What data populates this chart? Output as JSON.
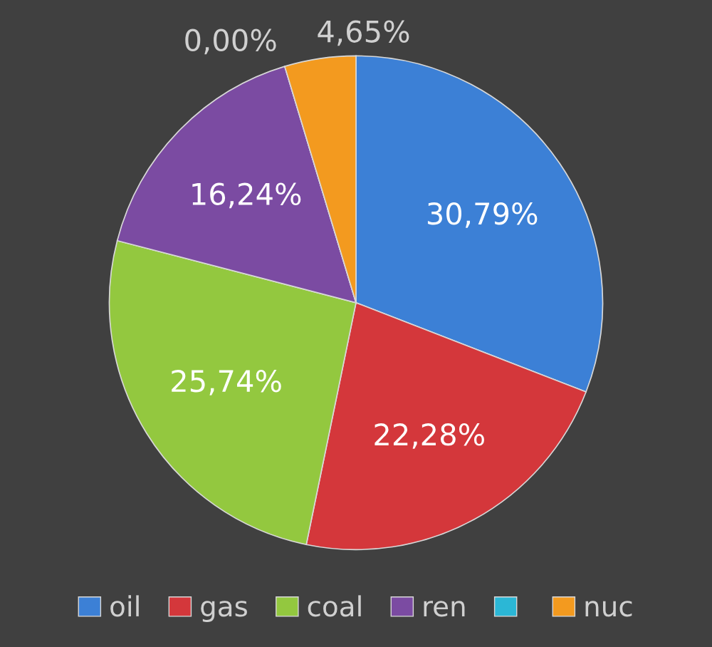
{
  "chart_data": {
    "type": "pie",
    "categories": [
      "oil",
      "gas",
      "coal",
      "ren",
      null,
      "nuc"
    ],
    "values": [
      30.79,
      22.28,
      25.74,
      16.24,
      0.0,
      4.65
    ],
    "value_labels": [
      "30,79%",
      "22,28%",
      "25,74%",
      "16,24%",
      "0,00%",
      "4,65%"
    ],
    "colors": [
      "#3c80d6",
      "#d4373b",
      "#93c83f",
      "#7b4ba2",
      "#2bb7d6",
      "#f39a1f"
    ],
    "legend": "bottom"
  }
}
